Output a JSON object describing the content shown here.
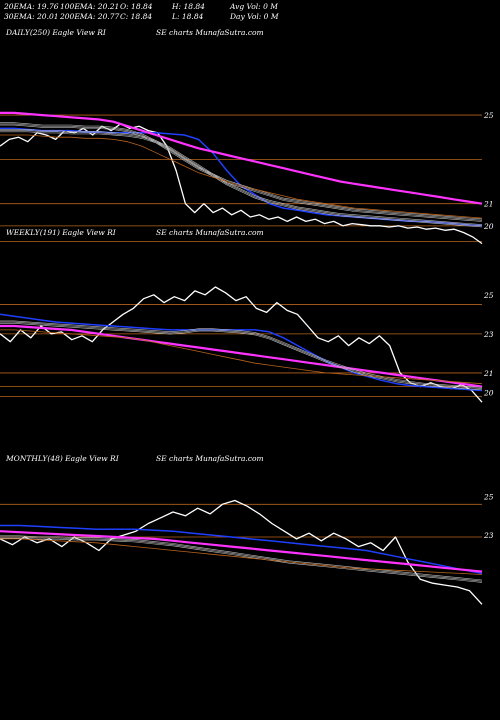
{
  "header": {
    "row1": [
      "20EMA: 19.76",
      "100EMA: 20.21",
      "O: 18.84",
      "H: 18.84",
      "Avg Vol: 0  M"
    ],
    "row2": [
      "30EMA: 20.01",
      "200EMA: 20.77",
      "C: 18.84",
      "L: 18.84",
      "Day Vol: 0  M"
    ]
  },
  "panels": [
    {
      "id": "daily",
      "title": "DAILY(250) Eagle  View  RI",
      "site": "SE charts MunafaSutra.com"
    },
    {
      "id": "weekly",
      "title": "WEEKLY(191) Eagle  View  RI",
      "site": "SE charts MunafaSutra.com"
    },
    {
      "id": "monthly",
      "title": "MONTHLY(48) Eagle  View  RI",
      "site": "SE charts MunafaSutra.com"
    }
  ],
  "colors": {
    "price": "#ffffff",
    "ema_fast": "#1f3fff",
    "ema_slow": "#ff33ff",
    "ref_line": "#b8621b",
    "sma_lines": "#bbbbbb",
    "background": "#000000"
  },
  "chart_data": [
    {
      "type": "line",
      "panel": "daily",
      "ylim": [
        19.0,
        25.5
      ],
      "yticks": [
        25,
        21,
        20
      ],
      "ref_lines": [
        25,
        23,
        21,
        20,
        19.3
      ],
      "series": [
        {
          "role": "price",
          "values": [
            23.6,
            23.9,
            24.0,
            23.8,
            24.2,
            24.1,
            23.9,
            24.3,
            24.2,
            24.4,
            24.1,
            24.5,
            24.3,
            24.6,
            24.4,
            24.5,
            24.3,
            24.2,
            23.6,
            22.5,
            21.0,
            20.6,
            21.0,
            20.6,
            20.8,
            20.5,
            20.7,
            20.4,
            20.5,
            20.3,
            20.4,
            20.2,
            20.4,
            20.2,
            20.3,
            20.1,
            20.2,
            20.0,
            20.1,
            20.05,
            20.0,
            20.0,
            19.95,
            20.0,
            19.9,
            19.95,
            19.85,
            19.9,
            19.8,
            19.85,
            19.7,
            19.5,
            19.2
          ]
        },
        {
          "role": "ema_fast",
          "values": [
            24.4,
            24.4,
            24.35,
            24.3,
            24.3,
            24.3,
            24.25,
            24.25,
            24.2,
            24.2,
            24.2,
            24.2,
            24.15,
            24.1,
            23.9,
            23.3,
            22.5,
            21.8,
            21.4,
            21.0,
            20.8,
            20.7,
            20.6,
            20.5,
            20.45,
            20.4,
            20.35,
            20.3,
            20.25,
            20.2,
            20.2,
            20.15,
            20.1,
            20.05,
            20.0
          ]
        },
        {
          "role": "ema_slow",
          "values": [
            25.1,
            25.1,
            25.05,
            25.0,
            24.95,
            24.9,
            24.85,
            24.8,
            24.7,
            24.5,
            24.3,
            24.1,
            23.9,
            23.7,
            23.5,
            23.35,
            23.2,
            23.05,
            22.9,
            22.75,
            22.6,
            22.45,
            22.3,
            22.15,
            22.0,
            21.9,
            21.8,
            21.7,
            21.6,
            21.5,
            21.4,
            21.3,
            21.2,
            21.1,
            21.0
          ]
        },
        {
          "role": "sma",
          "values": [
            24.6,
            24.6,
            24.55,
            24.5,
            24.5,
            24.5,
            24.45,
            24.45,
            24.4,
            24.3,
            24.1,
            23.8,
            23.4,
            23.0,
            22.6,
            22.3,
            22.0,
            21.8,
            21.6,
            21.4,
            21.2,
            21.1,
            21.0,
            20.9,
            20.8,
            20.7,
            20.65,
            20.6,
            20.55,
            20.5,
            20.45,
            20.4,
            20.35,
            20.3,
            20.25
          ]
        },
        {
          "role": "sma",
          "values": [
            24.3,
            24.3,
            24.3,
            24.25,
            24.25,
            24.2,
            24.2,
            24.2,
            24.15,
            24.1,
            24.0,
            23.8,
            23.5,
            23.1,
            22.7,
            22.3,
            21.9,
            21.6,
            21.3,
            21.1,
            20.95,
            20.8,
            20.7,
            20.6,
            20.5,
            20.45,
            20.4,
            20.35,
            20.3,
            20.25,
            20.2,
            20.15,
            20.1,
            20.05,
            20.0
          ]
        },
        {
          "role": "ref_curve",
          "values": [
            24.1,
            24.1,
            24.1,
            24.05,
            24.0,
            24.0,
            23.95,
            23.95,
            23.9,
            23.8,
            23.6,
            23.3,
            23.0,
            22.7,
            22.4,
            22.2,
            22.0,
            21.8,
            21.65,
            21.5,
            21.35,
            21.2,
            21.1,
            21.0,
            20.9,
            20.8,
            20.75,
            20.7,
            20.65,
            20.6,
            20.55,
            20.5,
            20.45,
            20.4,
            20.35
          ]
        }
      ]
    },
    {
      "type": "line",
      "panel": "weekly",
      "ylim": [
        19.0,
        25.5
      ],
      "yticks": [
        25,
        23,
        21,
        20
      ],
      "ref_lines": [
        24.5,
        23,
        21,
        20.3,
        19.8
      ],
      "series": [
        {
          "role": "price",
          "values": [
            23.0,
            22.6,
            23.2,
            22.8,
            23.4,
            23.0,
            23.1,
            22.7,
            22.9,
            22.6,
            23.2,
            23.6,
            24.0,
            24.3,
            24.8,
            25.0,
            24.6,
            24.9,
            24.7,
            25.2,
            25.0,
            25.4,
            25.1,
            24.7,
            24.9,
            24.3,
            24.1,
            24.6,
            24.2,
            24.0,
            23.4,
            22.8,
            22.6,
            22.9,
            22.4,
            22.8,
            22.5,
            22.9,
            22.4,
            21.0,
            20.5,
            20.3,
            20.5,
            20.3,
            20.2,
            20.4,
            20.1,
            19.5
          ]
        },
        {
          "role": "ema_fast",
          "values": [
            24.0,
            23.9,
            23.8,
            23.7,
            23.6,
            23.55,
            23.5,
            23.45,
            23.4,
            23.35,
            23.3,
            23.25,
            23.2,
            23.2,
            23.2,
            23.2,
            23.2,
            23.2,
            23.2,
            23.1,
            22.8,
            22.4,
            22.0,
            21.6,
            21.3,
            21.0,
            20.8,
            20.6,
            20.45,
            20.35,
            20.3,
            20.25,
            20.2,
            20.15,
            20.1
          ]
        },
        {
          "role": "ema_slow",
          "values": [
            23.4,
            23.4,
            23.35,
            23.3,
            23.25,
            23.2,
            23.1,
            23.0,
            22.9,
            22.8,
            22.7,
            22.6,
            22.5,
            22.4,
            22.3,
            22.2,
            22.1,
            22.0,
            21.9,
            21.8,
            21.7,
            21.6,
            21.5,
            21.4,
            21.3,
            21.2,
            21.1,
            21.0,
            20.9,
            20.8,
            20.7,
            20.6,
            20.5,
            20.4,
            20.3
          ]
        },
        {
          "role": "sma",
          "values": [
            23.6,
            23.6,
            23.55,
            23.5,
            23.45,
            23.4,
            23.35,
            23.3,
            23.25,
            23.2,
            23.15,
            23.1,
            23.05,
            23.1,
            23.2,
            23.2,
            23.15,
            23.1,
            23.0,
            22.8,
            22.5,
            22.2,
            21.9,
            21.6,
            21.35,
            21.1,
            20.9,
            20.75,
            20.6,
            20.5,
            20.4,
            20.35,
            20.3,
            20.25,
            20.2
          ]
        },
        {
          "role": "ref_curve",
          "values": [
            23.2,
            23.2,
            23.15,
            23.1,
            23.05,
            23.0,
            22.95,
            22.9,
            22.85,
            22.8,
            22.7,
            22.55,
            22.4,
            22.25,
            22.1,
            21.95,
            21.8,
            21.65,
            21.5,
            21.4,
            21.3,
            21.2,
            21.1,
            21.0,
            20.95,
            20.9,
            20.85,
            20.8,
            20.75,
            20.7,
            20.65,
            20.6,
            20.55,
            20.5,
            20.45
          ]
        }
      ]
    },
    {
      "type": "line",
      "panel": "monthly",
      "ylim": [
        19.0,
        25.5
      ],
      "yticks": [
        25,
        23
      ],
      "ref_lines": [
        24.6,
        22.9
      ],
      "series": [
        {
          "role": "price",
          "values": [
            22.8,
            22.5,
            22.9,
            22.6,
            22.8,
            22.4,
            22.9,
            22.6,
            22.2,
            22.8,
            23.0,
            23.2,
            23.6,
            23.9,
            24.2,
            24.0,
            24.4,
            24.1,
            24.6,
            24.8,
            24.5,
            24.1,
            23.6,
            23.2,
            22.8,
            23.1,
            22.7,
            23.1,
            22.8,
            22.4,
            22.6,
            22.2,
            22.9,
            21.6,
            20.7,
            20.5,
            20.4,
            20.3,
            20.1,
            19.4
          ]
        },
        {
          "role": "ema_fast",
          "values": [
            23.5,
            23.5,
            23.45,
            23.4,
            23.35,
            23.3,
            23.3,
            23.3,
            23.25,
            23.2,
            23.1,
            23.0,
            22.9,
            22.8,
            22.7,
            22.6,
            22.5,
            22.4,
            22.3,
            22.2,
            22.0,
            21.8,
            21.6,
            21.4,
            21.2,
            21.0
          ]
        },
        {
          "role": "ema_slow",
          "values": [
            23.2,
            23.15,
            23.1,
            23.05,
            23.0,
            22.95,
            22.9,
            22.85,
            22.8,
            22.7,
            22.6,
            22.5,
            22.4,
            22.3,
            22.2,
            22.1,
            22.0,
            21.9,
            21.8,
            21.7,
            21.6,
            21.5,
            21.4,
            21.3,
            21.2,
            21.1
          ]
        },
        {
          "role": "sma",
          "values": [
            22.9,
            22.9,
            22.85,
            22.85,
            22.8,
            22.8,
            22.75,
            22.7,
            22.6,
            22.5,
            22.35,
            22.2,
            22.05,
            21.9,
            21.75,
            21.6,
            21.5,
            21.4,
            21.3,
            21.2,
            21.1,
            21.0,
            20.9,
            20.8,
            20.7,
            20.6
          ]
        },
        {
          "role": "ref_curve",
          "values": [
            22.8,
            22.8,
            22.75,
            22.7,
            22.65,
            22.6,
            22.5,
            22.4,
            22.3,
            22.2,
            22.1,
            22.0,
            21.9,
            21.8,
            21.7,
            21.6,
            21.5,
            21.4,
            21.3,
            21.25,
            21.2,
            21.15,
            21.1,
            21.05,
            21.0,
            20.95
          ]
        }
      ]
    }
  ]
}
